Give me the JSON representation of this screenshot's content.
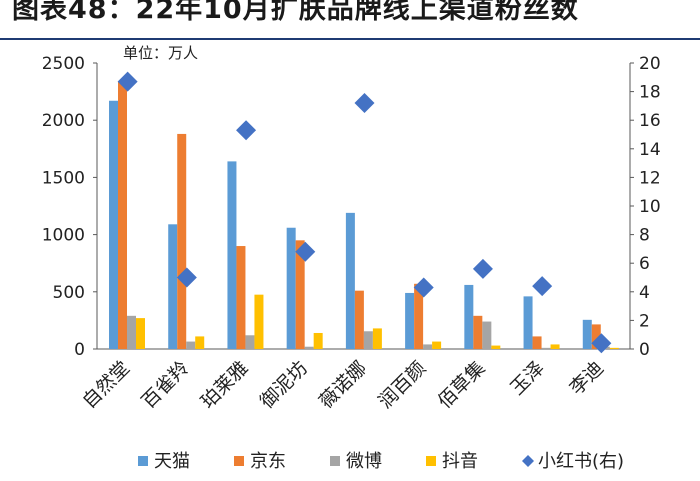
{
  "header": {
    "title": "图表48：22年10月扩肤品牌线上渠道粉丝数"
  },
  "chart_data": {
    "type": "bar",
    "unit_label": "单位：万人",
    "categories": [
      "自然堂",
      "百雀羚",
      "珀莱雅",
      "御泥坊",
      "薇诺娜",
      "润百颜",
      "佰草集",
      "玉泽",
      "李迪"
    ],
    "series": [
      {
        "name": "天猫",
        "axis": "left",
        "color": "#5b9bd5",
        "values": [
          2170,
          1090,
          1640,
          1060,
          1190,
          490,
          560,
          460,
          255
        ]
      },
      {
        "name": "京东",
        "axis": "left",
        "color": "#ed7d31",
        "values": [
          2340,
          1880,
          900,
          950,
          510,
          570,
          290,
          110,
          215
        ]
      },
      {
        "name": "微博",
        "axis": "left",
        "color": "#a5a5a5",
        "values": [
          290,
          65,
          120,
          20,
          155,
          40,
          240,
          10,
          20
        ]
      },
      {
        "name": "抖音",
        "axis": "left",
        "color": "#ffc000",
        "values": [
          270,
          110,
          475,
          140,
          180,
          65,
          30,
          40,
          10
        ]
      },
      {
        "name": "小红书(右)",
        "axis": "right",
        "type": "scatter",
        "color": "#4472c4",
        "values": [
          18.7,
          5.0,
          15.3,
          6.8,
          17.2,
          4.3,
          5.6,
          4.4,
          0.4
        ]
      }
    ],
    "yaxis_left": {
      "min": 0,
      "max": 2500,
      "step": 500,
      "ticks": [
        "0",
        "500",
        "1000",
        "1500",
        "2000",
        "2500"
      ]
    },
    "yaxis_right": {
      "min": 0,
      "max": 20,
      "step": 2,
      "ticks": [
        "0",
        "2",
        "4",
        "6",
        "8",
        "10",
        "12",
        "14",
        "16",
        "18",
        "20"
      ]
    },
    "grid": false,
    "legend_position": "bottom"
  }
}
